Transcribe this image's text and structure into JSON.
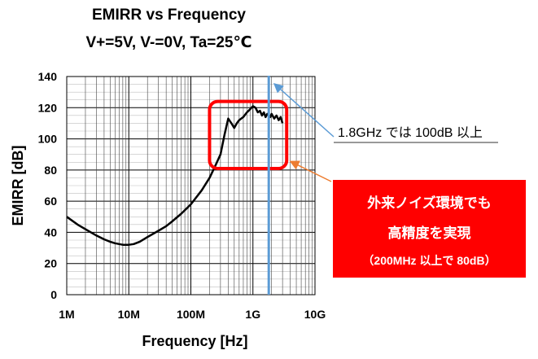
{
  "chart_data": {
    "type": "line",
    "title": "EMIRR vs Frequency",
    "subtitle": "V+=5V, V-=0V, Ta=25℃",
    "xlabel": "Frequency [Hz]",
    "ylabel": "EMIRR [dB]",
    "x_scale": "log",
    "xlim": [
      1000000,
      10000000000
    ],
    "ylim": [
      0,
      140
    ],
    "grid": true,
    "x_ticks": [
      {
        "value": 1000000,
        "label": "1M"
      },
      {
        "value": 10000000,
        "label": "10M"
      },
      {
        "value": 100000000,
        "label": "100M"
      },
      {
        "value": 1000000000,
        "label": "1G"
      },
      {
        "value": 10000000000,
        "label": "10G"
      }
    ],
    "y_ticks": [
      {
        "value": 0,
        "label": "0"
      },
      {
        "value": 20,
        "label": "20"
      },
      {
        "value": 40,
        "label": "40"
      },
      {
        "value": 60,
        "label": "60"
      },
      {
        "value": 80,
        "label": "80"
      },
      {
        "value": 100,
        "label": "100"
      },
      {
        "value": 120,
        "label": "120"
      },
      {
        "value": 140,
        "label": "140"
      }
    ],
    "series": [
      {
        "color": "#000000",
        "x": [
          1000000,
          1500000,
          2000000,
          3000000,
          4000000,
          5000000,
          6000000,
          7000000,
          8000000,
          10000000,
          12000000,
          15000000,
          20000000,
          30000000,
          40000000,
          50000000,
          70000000,
          100000000,
          150000000,
          200000000,
          250000000,
          300000000,
          350000000,
          400000000,
          450000000,
          500000000,
          550000000,
          600000000,
          700000000,
          800000000,
          900000000,
          1000000000,
          1100000000,
          1200000000,
          1300000000,
          1400000000,
          1500000000,
          1600000000,
          1700000000,
          1800000000,
          1900000000,
          2000000000,
          2200000000,
          2400000000,
          2600000000,
          2800000000,
          3000000000
        ],
        "y": [
          50,
          45,
          42,
          38,
          35.5,
          34,
          33,
          32.5,
          32,
          32,
          32.5,
          34,
          37,
          41,
          44,
          47,
          52,
          58,
          67,
          75,
          83,
          90,
          103,
          113,
          110,
          107,
          110,
          112,
          114,
          117,
          119,
          121,
          120,
          117,
          118,
          115,
          117,
          114,
          116,
          115,
          114,
          116,
          113,
          115,
          112,
          114,
          110
        ]
      }
    ],
    "annotations": [
      {
        "id": "line_1g8",
        "text": "1.8GHz では 100dB 以上",
        "x": 1800000000,
        "color": "#5b9bd5"
      },
      {
        "id": "box_200m",
        "lines": [
          "外来ノイズ環境でも",
          "高精度を実現",
          "（200MHz 以上で 80dB）"
        ],
        "color": "#ff0000",
        "region": {
          "x": [
            200000000,
            3500000000
          ],
          "y": [
            81,
            124
          ]
        }
      }
    ]
  },
  "colors": {
    "accent_blue": "#5b9bd5",
    "highlight_red": "#ff0000",
    "arrow_orange": "#ed7d31"
  }
}
